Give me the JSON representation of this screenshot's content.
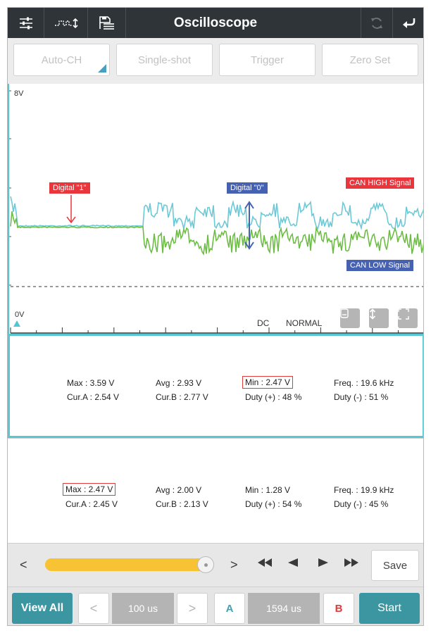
{
  "header": {
    "title": "Oscilloscope",
    "icons": [
      "settings-sliders-icon",
      "pulse-waveform-icon",
      "save-list-icon",
      "refresh-icon",
      "back-return-icon"
    ]
  },
  "toolbar": {
    "auto_ch": "Auto-CH",
    "single_shot": "Single-shot",
    "trigger": "Trigger",
    "zero_set": "Zero Set"
  },
  "scope": {
    "top_voltage": "8V",
    "bottom_voltage": "0V",
    "tag_digital1": "Digital \"1\"",
    "tag_digital0": "Digital \"0\"",
    "tag_can_high": "CAN HIGH Signal",
    "tag_can_low": "CAN LOW Signal",
    "coupling": "DC",
    "mode": "NORMAL",
    "colors": {
      "can_high": "#6cc9d6",
      "can_low": "#6dbd45",
      "red_tag": "#e9363d",
      "blue_tag": "#4661b1"
    }
  },
  "channel1": {
    "max": "Max : 3.59 V",
    "avg": "Avg : 2.93 V",
    "min": "Min : 2.47 V",
    "freq": "Freq. : 19.6 kHz",
    "cur_a": "Cur.A : 2.54 V",
    "cur_b": "Cur.B : 2.77 V",
    "duty_pos": "Duty (+) : 48 %",
    "duty_neg": "Duty (-) : 51 %"
  },
  "channel2": {
    "max": "Max : 2.47 V",
    "avg": "Avg : 2.00 V",
    "min": "Min : 1.28 V",
    "freq": "Freq. : 19.9 kHz",
    "cur_a": "Cur.A : 2.45 V",
    "cur_b": "Cur.B : 2.13 V",
    "duty_pos": "Duty (+) : 54 %",
    "duty_neg": "Duty (-) : 45 %"
  },
  "playback": {
    "prev": "<",
    "next": ">",
    "save": "Save",
    "slider_position": 0.95
  },
  "bottom": {
    "view_all": "View All",
    "time_prev": "<",
    "time_div": "100 us",
    "time_next": ">",
    "cursor_a": "A",
    "cursor_value": "1594 us",
    "cursor_b": "B",
    "start": "Start"
  }
}
